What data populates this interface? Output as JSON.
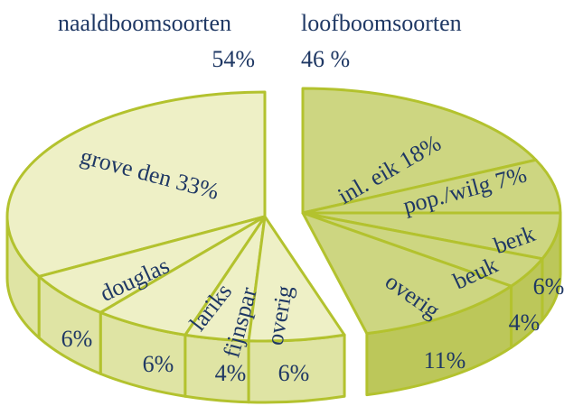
{
  "chart_data": [
    {
      "type": "pie",
      "title": "naaldboomsoorten",
      "total": 54,
      "total_label": "54%",
      "direction": "counterclockwise",
      "color": "#eef0c6",
      "side_color": "#dfe4a4",
      "edge_color": "#b3c22e",
      "categories": [
        "grove den",
        "douglas",
        "lariks",
        "fijnspar",
        "overig"
      ],
      "values": [
        33,
        6,
        6,
        4,
        6
      ],
      "value_labels": [
        "33%",
        "6%",
        "6%",
        "4%",
        "6%"
      ]
    },
    {
      "type": "pie",
      "title": "loofboomsoorten",
      "total": 46,
      "total_label": "46 %",
      "direction": "clockwise",
      "color": "#cdd681",
      "side_color": "#bcc75a",
      "edge_color": "#b3c22e",
      "categories": [
        "inl. eik",
        "pop./wilg",
        "berk",
        "beuk",
        "overig"
      ],
      "values": [
        18,
        7,
        6,
        4,
        11
      ],
      "value_labels": [
        "18%",
        "7%",
        "6%",
        "4%",
        "11%"
      ]
    }
  ]
}
